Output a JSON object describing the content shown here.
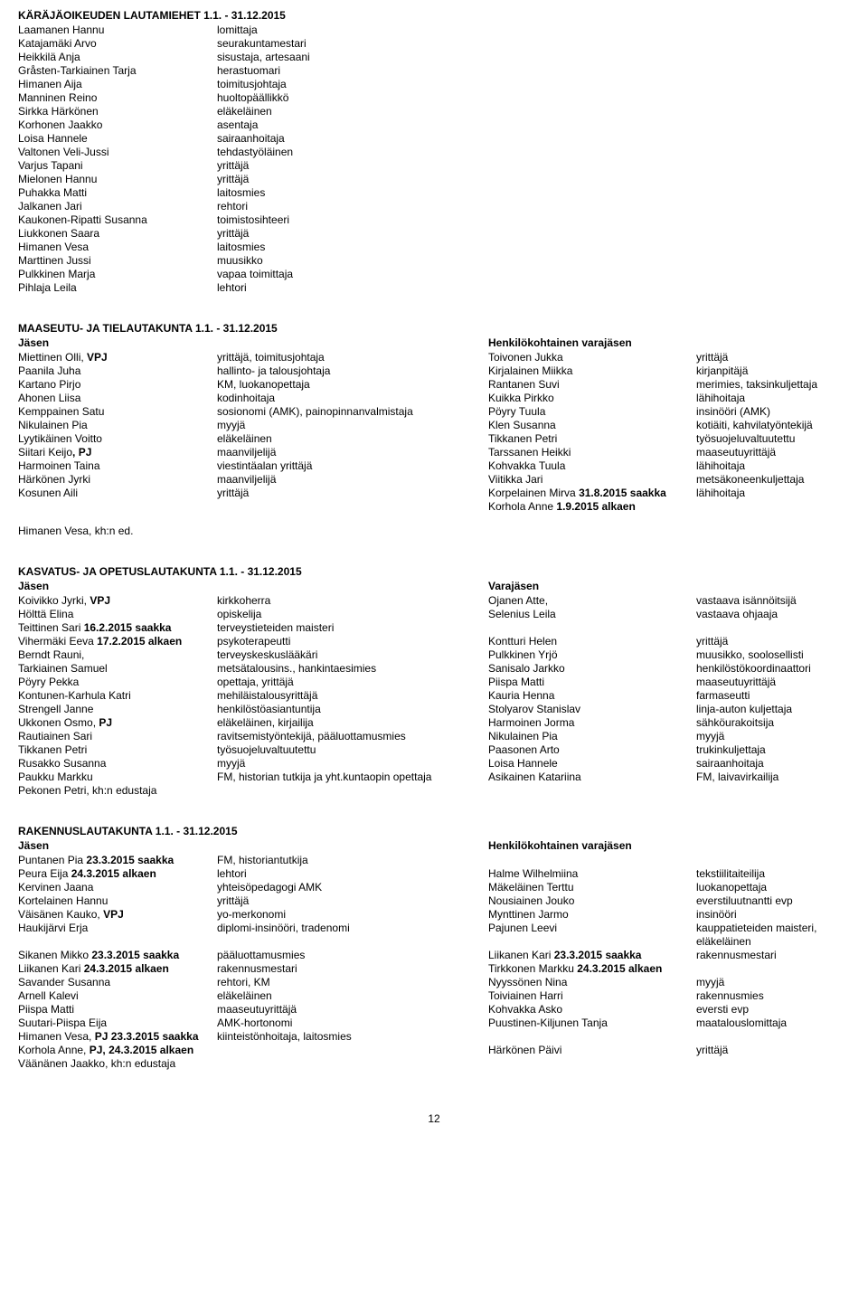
{
  "page_number": "12",
  "lautamiehet": {
    "title": "KÄRÄJÄOIKEUDEN LAUTAMIEHET 1.1. - 31.12.2015",
    "rows": [
      {
        "name": "Laamanen Hannu",
        "title": "lomittaja"
      },
      {
        "name": "Katajamäki Arvo",
        "title": "seurakuntamestari"
      },
      {
        "name": "Heikkilä Anja",
        "title": "sisustaja, artesaani"
      },
      {
        "name": "Gråsten-Tarkiainen Tarja",
        "title": "herastuomari"
      },
      {
        "name": "Himanen Aija",
        "title": "toimitusjohtaja"
      },
      {
        "name": "Manninen Reino",
        "title": "huoltopäällikkö"
      },
      {
        "name": "Sirkka Härkönen",
        "title": "eläkeläinen"
      },
      {
        "name": "Korhonen Jaakko",
        "title": "asentaja"
      },
      {
        "name": "Loisa Hannele",
        "title": "sairaanhoitaja"
      },
      {
        "name": "Valtonen Veli-Jussi",
        "title": "tehdastyöläinen"
      },
      {
        "name": "Varjus Tapani",
        "title": "yrittäjä"
      },
      {
        "name": "Mielonen Hannu",
        "title": "yrittäjä"
      },
      {
        "name": "Puhakka Matti",
        "title": "laitosmies"
      },
      {
        "name": "Jalkanen Jari",
        "title": "rehtori"
      },
      {
        "name": "Kaukonen-Ripatti Susanna",
        "title": "toimistosihteeri"
      },
      {
        "name": "Liukkonen Saara",
        "title": "yrittäjä"
      },
      {
        "name": "Himanen Vesa",
        "title": "laitosmies"
      },
      {
        "name": "Marttinen Jussi",
        "title": "muusikko"
      },
      {
        "name": "Pulkkinen Marja",
        "title": "vapaa toimittaja"
      },
      {
        "name": "Pihlaja Leila",
        "title": "lehtori"
      }
    ]
  },
  "maaseutu": {
    "title": "MAASEUTU- JA TIELAUTAKUNTA 1.1. - 31.12.2015",
    "hdr_a": "Jäsen",
    "hdr_c": "Henkilökohtainen varajäsen",
    "footer": "Himanen Vesa, kh:n ed.",
    "rows": [
      {
        "a": "Miettinen Olli, ",
        "a_bold": "VPJ",
        "b": "yrittäjä, toimitusjohtaja",
        "c": "Toivonen Jukka",
        "d": "yrittäjä"
      },
      {
        "a": "Paanila Juha",
        "b": "hallinto- ja talousjohtaja",
        "c": "Kirjalainen Miikka",
        "d": "kirjanpitäjä"
      },
      {
        "a": "Kartano Pirjo",
        "b": "KM, luokanopettaja",
        "c": "Rantanen Suvi",
        "d": "merimies, taksinkuljettaja"
      },
      {
        "a": "Ahonen Liisa",
        "b": "kodinhoitaja",
        "c": "Kuikka Pirkko",
        "d": "lähihoitaja"
      },
      {
        "a": "Kemppainen Satu",
        "b": "sosionomi (AMK), painopinnanvalmistaja",
        "c": "Pöyry Tuula",
        "d": "insinööri (AMK)"
      },
      {
        "a": "Nikulainen Pia",
        "b": "myyjä",
        "c": "Klen Susanna",
        "d": "kotiäiti, kahvilatyöntekijä"
      },
      {
        "a": "Lyytikäinen Voitto",
        "b": "eläkeläinen",
        "c": "Tikkanen Petri",
        "d": "työsuojeluvaltuutettu"
      },
      {
        "a": "Siitari Keijo",
        "a_bold": ", PJ",
        "b": "maanviljelijä",
        "c": "Tarssanen Heikki",
        "d": "maaseutuyrittäjä"
      },
      {
        "a": "Harmoinen Taina",
        "b": "viestintäalan yrittäjä",
        "c": "Kohvakka Tuula",
        "d": "lähihoitaja"
      },
      {
        "a": "Härkönen Jyrki",
        "b": "maanviljelijä",
        "c": "Viitikka Jari",
        "d": "metsäkoneenkuljettaja"
      },
      {
        "a": "Kosunen Aili",
        "b": "yrittäjä",
        "c_pre": "Korpelainen Mirva ",
        "c_bold": "31.8.2015 saakka",
        "d": "lähihoitaja"
      },
      {
        "a": "",
        "b": "",
        "c_pre": "Korhola Anne ",
        "c_bold": "1.9.2015 alkaen",
        "d": ""
      }
    ]
  },
  "kasvatus": {
    "title": "KASVATUS- JA OPETUSLAUTAKUNTA 1.1. - 31.12.2015",
    "hdr_a": "Jäsen",
    "hdr_c": "Varajäsen",
    "footer": "Pekonen Petri, kh:n edustaja",
    "rows": [
      {
        "a_pre": "Koivikko Jyrki, ",
        "a_bold": "VPJ",
        "b": "kirkkoherra",
        "c": "Ojanen Atte,",
        "d": "vastaava isännöitsijä"
      },
      {
        "a": "Hölttä Elina",
        "b": "opiskelija",
        "c": "Selenius Leila",
        "d": "vastaava ohjaaja"
      },
      {
        "a_pre": "Teittinen Sari ",
        "a_bold": "16.2.2015 saakka",
        "b": "terveystieteiden maisteri",
        "c": "",
        "d": ""
      },
      {
        "a_pre": "Vihermäki Eeva ",
        "a_bold": "17.2.2015 alkaen",
        "b": "psykoterapeutti",
        "c": "Kontturi Helen",
        "d": "yrittäjä"
      },
      {
        "a": "Berndt Rauni,",
        "b": "terveyskeskuslääkäri",
        "c": "Pulkkinen Yrjö",
        "d": "muusikko, soolosellisti"
      },
      {
        "a": "Tarkiainen Samuel",
        "b": "metsätalousins., hankintaesimies",
        "c": "Sanisalo Jarkko",
        "d": "henkilöstökoordinaattori"
      },
      {
        "a": "Pöyry Pekka",
        "b": "opettaja, yrittäjä",
        "c": "Piispa Matti",
        "d": "maaseutuyrittäjä"
      },
      {
        "a": "Kontunen-Karhula Katri",
        "b": "mehiläistalousyrittäjä",
        "c": "Kauria Henna",
        "d": "farmaseutti"
      },
      {
        "a": "Strengell Janne",
        "b": "henkilöstöasiantuntija",
        "c": "Stolyarov Stanislav",
        "d": "linja-auton kuljettaja"
      },
      {
        "a_pre": "Ukkonen Osmo, ",
        "a_bold": "PJ",
        "b": "eläkeläinen, kirjailija",
        "c": "Harmoinen Jorma",
        "d": "sähköurakoitsija"
      },
      {
        "a": "Rautiainen Sari",
        "b": "ravitsemistyöntekijä, pääluottamusmies",
        "c": "Nikulainen Pia",
        "d": "myyjä"
      },
      {
        "a": "Tikkanen Petri",
        "b": "työsuojeluvaltuutettu",
        "c": "Paasonen Arto",
        "d": "trukinkuljettaja"
      },
      {
        "a": "Rusakko Susanna",
        "b": "myyjä",
        "c": "Loisa Hannele",
        "d": "sairaanhoitaja"
      },
      {
        "a": "Paukku Markku",
        "b": "FM, historian tutkija ja yht.kuntaopin opettaja",
        "c": "Asikainen Katariina",
        "d": "FM, laivavirkailija"
      }
    ]
  },
  "rakennus": {
    "title": "RAKENNUSLAUTAKUNTA 1.1. - 31.12.2015",
    "hdr_a": "Jäsen",
    "hdr_c": "Henkilökohtainen varajäsen",
    "footer": "Väänänen Jaakko, kh:n edustaja",
    "rows": [
      {
        "a_pre": "Puntanen Pia ",
        "a_bold": "23.3.2015 saakka",
        "b": "FM, historiantutkija",
        "c": "",
        "d": ""
      },
      {
        "a_pre": "Peura Eija ",
        "a_bold": "24.3.2015 alkaen",
        "b": "lehtori",
        "c": "Halme Wilhelmiina",
        "d": "tekstiilitaiteilija"
      },
      {
        "a": "Kervinen Jaana",
        "b": "yhteisöpedagogi AMK",
        "c": "Mäkeläinen Terttu",
        "d": "luokanopettaja"
      },
      {
        "a": "Kortelainen Hannu",
        "b": "yrittäjä",
        "c": "Nousiainen Jouko",
        "d": "everstiluutnantti evp"
      },
      {
        "a_pre": "Väisänen Kauko, ",
        "a_bold": "VPJ",
        "b": "yo-merkonomi",
        "c": "Mynttinen Jarmo",
        "d": "insinööri"
      },
      {
        "a": "Haukijärvi Erja",
        "b": "diplomi-insinööri, tradenomi",
        "c": "Pajunen Leevi",
        "d": "kauppatieteiden maisteri, eläkeläinen"
      },
      {
        "a_pre": "Sikanen Mikko ",
        "a_bold": "23.3.2015 saakka",
        "b": "pääluottamusmies",
        "c_pre": "Liikanen Kari ",
        "c_bold": "23.3.2015 saakka",
        "d": "rakennusmestari"
      },
      {
        "a_pre": "Liikanen Kari ",
        "a_bold": "24.3.2015 alkaen",
        "b": "rakennusmestari",
        "c_pre": "Tirkkonen Markku ",
        "c_bold": "24.3.2015 alkaen",
        "d": ""
      },
      {
        "a": "Savander Susanna",
        "b": "rehtori, KM",
        "c": "Nyyssönen Nina",
        "d": "myyjä"
      },
      {
        "a": "Arnell Kalevi",
        "b": "eläkeläinen",
        "c": "Toiviainen Harri",
        "d": "rakennusmies"
      },
      {
        "a": "Piispa Matti",
        "b": "maaseutuyrittäjä",
        "c": "Kohvakka Asko",
        "d": "eversti evp"
      },
      {
        "a": "Suutari-Piispa Eija",
        "b": "AMK-hortonomi",
        "c": "Puustinen-Kiljunen Tanja",
        "d": "maatalouslomittaja"
      },
      {
        "a_pre": "Himanen Vesa, ",
        "a_bold": "PJ  23.3.2015 saakka",
        "b": "kiinteistönhoitaja, laitosmies",
        "c": "",
        "d": ""
      },
      {
        "a_pre": "Korhola Anne, ",
        "a_bold": "PJ, 24.3.2015 alkaen",
        "b": "",
        "c": "Härkönen Päivi",
        "d": "yrittäjä"
      }
    ]
  }
}
